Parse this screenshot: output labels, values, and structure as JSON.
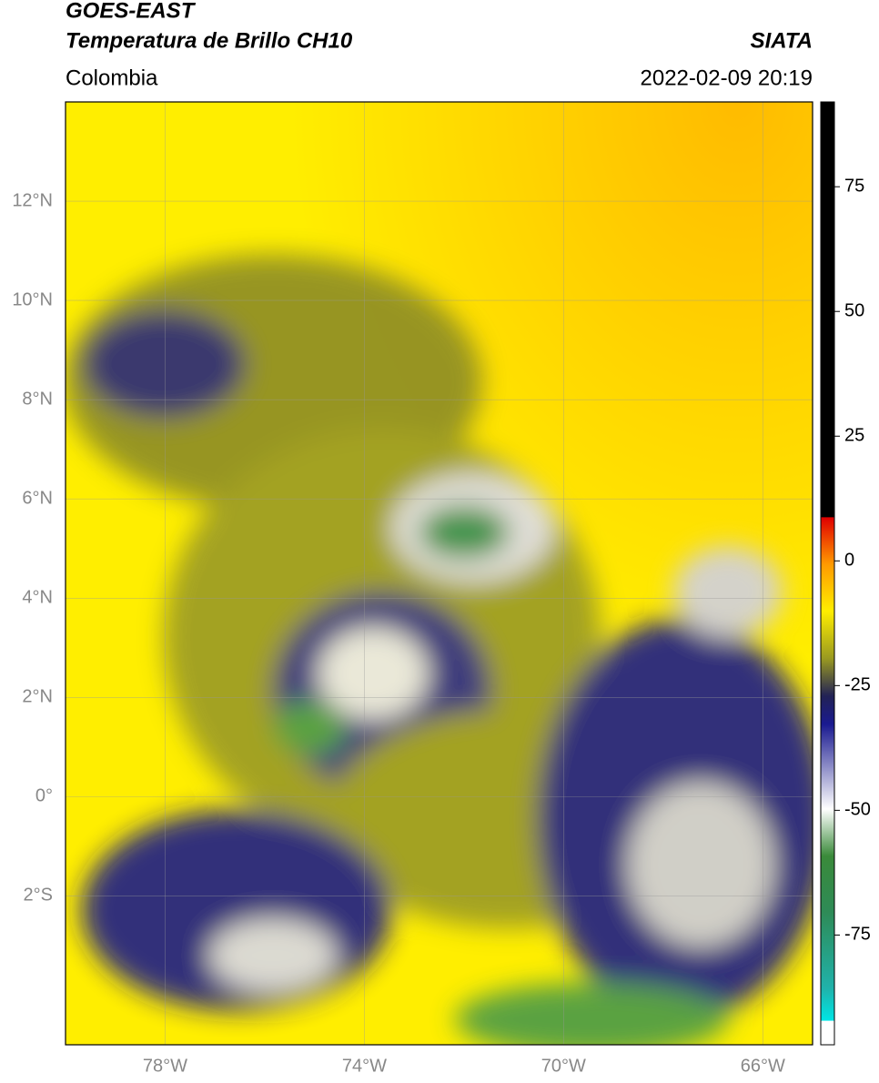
{
  "header": {
    "satellite": "GOES-EAST",
    "product": "Temperatura de Brillo CH10",
    "source": "SIATA",
    "region": "Colombia",
    "datetime": "2022-02-09 20:19"
  },
  "map": {
    "lon_range": [
      -80,
      -65
    ],
    "lat_range": [
      -5,
      14
    ],
    "lat_ticks": [
      {
        "value": 12,
        "label": "12°N"
      },
      {
        "value": 10,
        "label": "10°N"
      },
      {
        "value": 8,
        "label": "8°N"
      },
      {
        "value": 6,
        "label": "6°N"
      },
      {
        "value": 4,
        "label": "4°N"
      },
      {
        "value": 2,
        "label": "2°N"
      },
      {
        "value": 0,
        "label": "0°"
      },
      {
        "value": -2,
        "label": "2°S"
      }
    ],
    "lon_ticks": [
      {
        "value": -78,
        "label": "78°W"
      },
      {
        "value": -74,
        "label": "74°W"
      },
      {
        "value": -70,
        "label": "70°W"
      },
      {
        "value": -66,
        "label": "66°W"
      }
    ]
  },
  "colorbar": {
    "range": [
      -97,
      92
    ],
    "ticks": [
      75,
      50,
      25,
      0,
      -25,
      -50,
      -75
    ]
  }
}
